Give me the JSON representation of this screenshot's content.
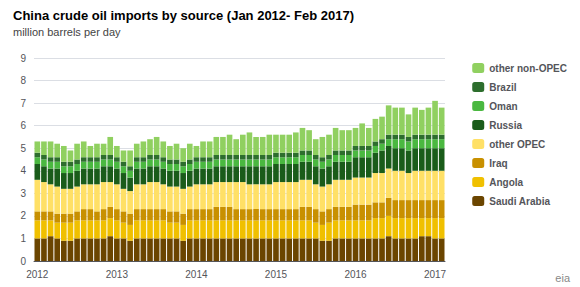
{
  "chart_data": {
    "type": "bar",
    "stacked": true,
    "title": "China crude oil imports by source (Jan 2012- Feb 2017)",
    "subtitle": "million barrels per day",
    "annotations": [
      {
        "text": "eia"
      }
    ],
    "categories": [
      "2012",
      null,
      null,
      null,
      null,
      null,
      null,
      null,
      null,
      null,
      null,
      null,
      "2013",
      null,
      null,
      null,
      null,
      null,
      null,
      null,
      null,
      null,
      null,
      null,
      "2014",
      null,
      null,
      null,
      null,
      null,
      null,
      null,
      null,
      null,
      null,
      null,
      "2015",
      null,
      null,
      null,
      null,
      null,
      null,
      null,
      null,
      null,
      null,
      null,
      "2016",
      null,
      null,
      null,
      null,
      null,
      null,
      null,
      null,
      null,
      null,
      null,
      "2017",
      null
    ],
    "ylim": [
      0,
      9
    ],
    "yticks": [
      0,
      1,
      2,
      3,
      4,
      5,
      6,
      7,
      8,
      9
    ],
    "grid": true,
    "legend": "right",
    "series": [
      {
        "name": "Saudi Arabia",
        "color": "#6b4500",
        "values": [
          1.0,
          1.0,
          1.1,
          1.0,
          0.9,
          0.9,
          1.0,
          1.0,
          1.0,
          1.0,
          1.0,
          1.1,
          1.0,
          1.0,
          0.9,
          1.0,
          1.0,
          1.0,
          1.0,
          1.0,
          1.0,
          1.0,
          0.9,
          1.0,
          1.0,
          1.0,
          1.0,
          1.0,
          1.0,
          1.0,
          1.0,
          1.0,
          1.0,
          1.0,
          1.0,
          1.0,
          1.0,
          1.0,
          1.0,
          1.0,
          1.0,
          1.0,
          1.0,
          0.9,
          0.9,
          1.0,
          1.0,
          1.0,
          1.0,
          1.0,
          1.0,
          1.0,
          1.0,
          1.1,
          1.0,
          1.0,
          1.0,
          1.0,
          1.1,
          1.1,
          1.0,
          1.0
        ]
      },
      {
        "name": "Angola",
        "color": "#f0c000",
        "values": [
          0.8,
          0.8,
          0.7,
          0.7,
          0.8,
          0.8,
          0.8,
          0.8,
          0.8,
          0.8,
          0.8,
          0.8,
          0.8,
          0.7,
          0.7,
          0.8,
          0.8,
          0.8,
          0.8,
          0.8,
          0.7,
          0.7,
          0.7,
          0.8,
          0.8,
          0.8,
          0.8,
          0.8,
          0.8,
          0.8,
          0.8,
          0.8,
          0.8,
          0.8,
          0.8,
          0.8,
          0.8,
          0.8,
          0.8,
          0.8,
          0.8,
          0.8,
          0.7,
          0.7,
          0.8,
          0.8,
          0.8,
          0.8,
          0.8,
          0.8,
          0.8,
          0.9,
          0.9,
          0.9,
          0.9,
          0.9,
          0.9,
          0.9,
          0.8,
          0.8,
          0.9,
          0.9
        ]
      },
      {
        "name": "Iraq",
        "color": "#c89000",
        "values": [
          0.4,
          0.4,
          0.4,
          0.4,
          0.4,
          0.4,
          0.4,
          0.5,
          0.5,
          0.4,
          0.5,
          0.5,
          0.5,
          0.5,
          0.5,
          0.5,
          0.5,
          0.5,
          0.5,
          0.5,
          0.5,
          0.5,
          0.5,
          0.5,
          0.5,
          0.5,
          0.5,
          0.6,
          0.6,
          0.6,
          0.5,
          0.5,
          0.5,
          0.5,
          0.5,
          0.5,
          0.5,
          0.5,
          0.5,
          0.5,
          0.6,
          0.6,
          0.6,
          0.6,
          0.6,
          0.6,
          0.6,
          0.6,
          0.7,
          0.7,
          0.7,
          0.7,
          0.7,
          0.8,
          0.8,
          0.8,
          0.8,
          0.8,
          0.8,
          0.8,
          0.8,
          0.8
        ]
      },
      {
        "name": "other OPEC",
        "color": "#ffe066",
        "values": [
          1.4,
          1.3,
          1.2,
          1.2,
          1.1,
          1.1,
          1.1,
          1.1,
          1.1,
          1.2,
          1.2,
          1.1,
          1.1,
          1.0,
          1.0,
          1.1,
          1.1,
          1.2,
          1.2,
          1.1,
          1.1,
          1.1,
          1.1,
          1.0,
          1.1,
          1.1,
          1.1,
          1.1,
          1.1,
          1.1,
          1.2,
          1.2,
          1.1,
          1.1,
          1.1,
          1.1,
          1.2,
          1.2,
          1.2,
          1.2,
          1.2,
          1.2,
          1.1,
          1.1,
          1.1,
          1.2,
          1.2,
          1.2,
          1.2,
          1.2,
          1.2,
          1.3,
          1.3,
          1.3,
          1.3,
          1.3,
          1.2,
          1.3,
          1.3,
          1.3,
          1.3,
          1.3
        ]
      },
      {
        "name": "Russia",
        "color": "#1a5c1a",
        "values": [
          0.7,
          0.7,
          0.7,
          0.8,
          0.7,
          0.7,
          0.7,
          0.7,
          0.7,
          0.7,
          0.7,
          0.7,
          0.7,
          0.7,
          0.6,
          0.7,
          0.7,
          0.7,
          0.7,
          0.7,
          0.7,
          0.7,
          0.7,
          0.7,
          0.7,
          0.7,
          0.7,
          0.7,
          0.7,
          0.7,
          0.7,
          0.7,
          0.8,
          0.8,
          0.8,
          0.8,
          0.8,
          0.8,
          0.8,
          0.8,
          0.8,
          0.8,
          0.8,
          0.8,
          0.8,
          0.8,
          0.8,
          0.8,
          0.9,
          0.9,
          0.9,
          0.9,
          1.0,
          1.0,
          1.0,
          1.0,
          1.0,
          1.0,
          1.0,
          1.0,
          1.0,
          1.0
        ]
      },
      {
        "name": "Oman",
        "color": "#4ab840",
        "values": [
          0.3,
          0.3,
          0.3,
          0.3,
          0.3,
          0.3,
          0.3,
          0.3,
          0.3,
          0.3,
          0.3,
          0.3,
          0.3,
          0.3,
          0.3,
          0.3,
          0.3,
          0.3,
          0.3,
          0.3,
          0.3,
          0.3,
          0.3,
          0.3,
          0.3,
          0.3,
          0.3,
          0.3,
          0.3,
          0.3,
          0.3,
          0.3,
          0.3,
          0.3,
          0.3,
          0.3,
          0.3,
          0.3,
          0.3,
          0.3,
          0.3,
          0.3,
          0.3,
          0.3,
          0.3,
          0.3,
          0.3,
          0.3,
          0.3,
          0.3,
          0.3,
          0.3,
          0.3,
          0.3,
          0.4,
          0.4,
          0.4,
          0.4,
          0.4,
          0.4,
          0.4,
          0.4
        ]
      },
      {
        "name": "Brazil",
        "color": "#2d6e2d",
        "values": [
          0.2,
          0.2,
          0.2,
          0.2,
          0.2,
          0.2,
          0.2,
          0.2,
          0.2,
          0.2,
          0.2,
          0.2,
          0.2,
          0.2,
          0.2,
          0.2,
          0.2,
          0.2,
          0.2,
          0.2,
          0.2,
          0.2,
          0.2,
          0.2,
          0.2,
          0.2,
          0.2,
          0.2,
          0.2,
          0.2,
          0.2,
          0.2,
          0.2,
          0.2,
          0.2,
          0.2,
          0.2,
          0.2,
          0.2,
          0.2,
          0.2,
          0.2,
          0.2,
          0.2,
          0.2,
          0.2,
          0.2,
          0.2,
          0.2,
          0.2,
          0.2,
          0.2,
          0.2,
          0.2,
          0.2,
          0.2,
          0.2,
          0.2,
          0.2,
          0.2,
          0.2,
          0.2
        ]
      },
      {
        "name": "other non-OPEC",
        "color": "#90d060",
        "values": [
          0.5,
          0.6,
          0.7,
          0.6,
          0.7,
          0.5,
          0.7,
          0.7,
          0.5,
          0.6,
          0.5,
          0.8,
          0.5,
          0.5,
          0.7,
          0.6,
          0.7,
          0.7,
          0.8,
          0.7,
          0.6,
          0.7,
          0.6,
          0.7,
          0.5,
          0.7,
          0.7,
          0.8,
          0.8,
          0.9,
          0.7,
          0.9,
          1.0,
          0.8,
          0.8,
          0.9,
          0.8,
          0.8,
          0.8,
          0.9,
          1.0,
          0.9,
          0.7,
          0.9,
          0.9,
          1.0,
          0.9,
          0.9,
          0.8,
          1.0,
          0.8,
          1.0,
          1.0,
          1.3,
          1.2,
          1.2,
          1.0,
          1.2,
          1.1,
          1.2,
          1.5,
          1.2
        ]
      }
    ]
  }
}
